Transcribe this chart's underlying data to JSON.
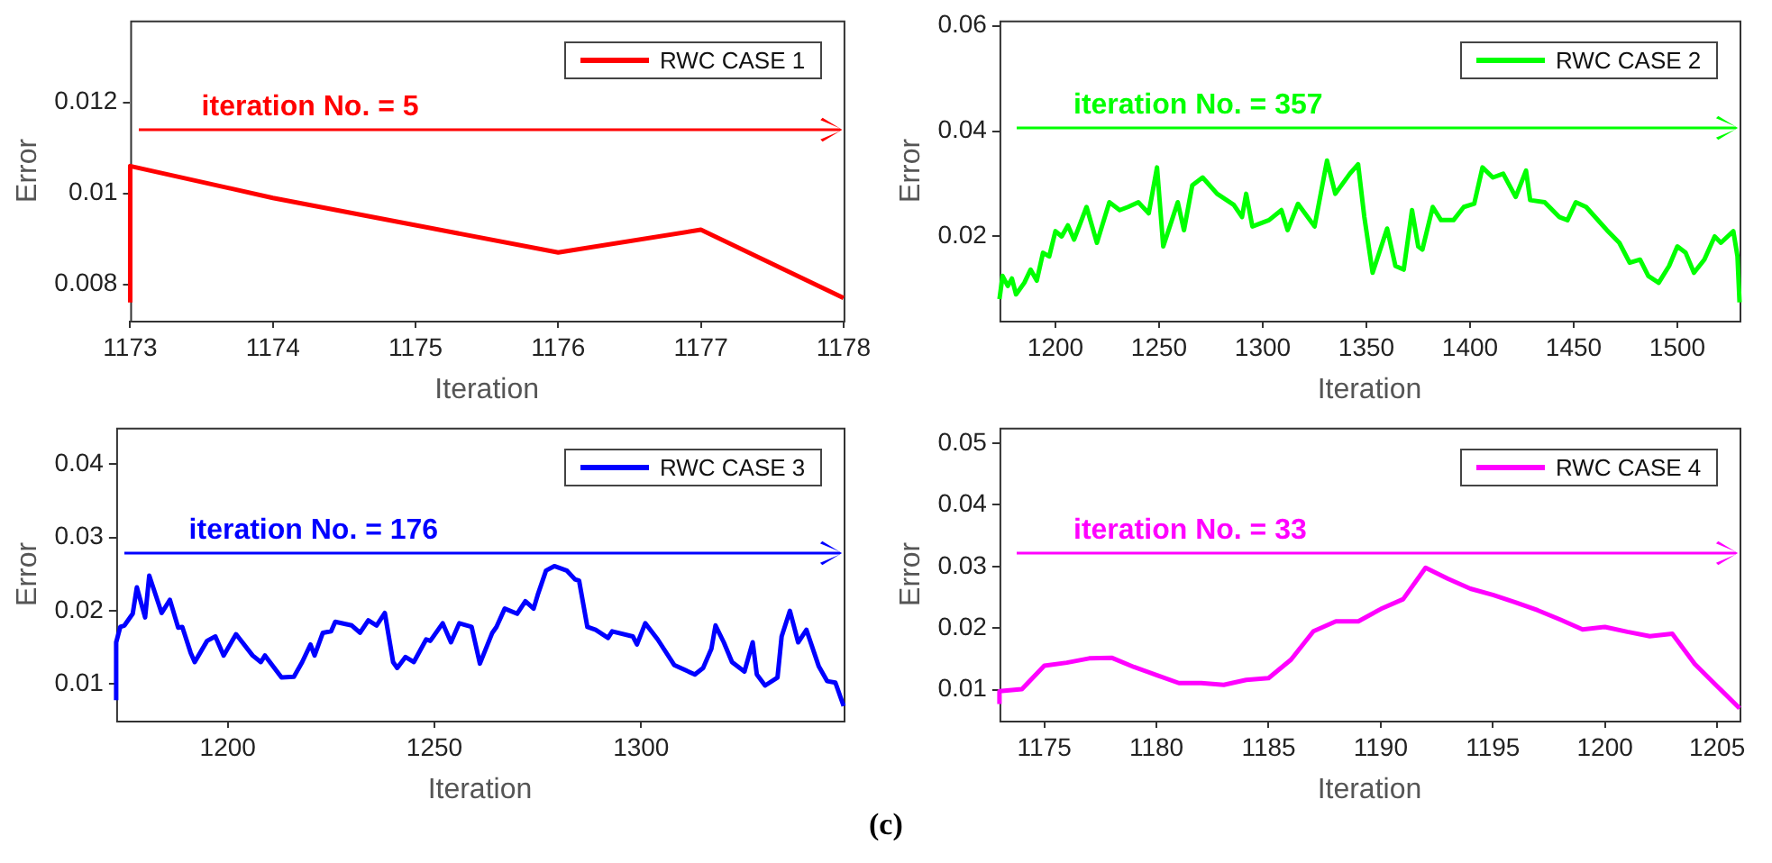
{
  "chart_data": [
    {
      "type": "line",
      "xlabel": "Iteration",
      "ylabel": "Error",
      "xlim": [
        1173,
        1178
      ],
      "xticks": [
        1173,
        1174,
        1175,
        1176,
        1177,
        1178
      ],
      "ylim": [
        0.0072,
        0.0138
      ],
      "yticks": [
        0.008,
        0.01,
        0.012
      ],
      "legend": "top right",
      "annotations": [
        "iteration No. = 5"
      ],
      "series": [
        {
          "name": "RWC CASE 1",
          "color": "#ff0000",
          "x": [
            1173,
            1173,
            1174,
            1175,
            1176,
            1177,
            1178
          ],
          "values": [
            0.0076,
            0.0106,
            0.0099,
            0.0093,
            0.0087,
            0.0092,
            0.0077
          ]
        }
      ]
    },
    {
      "type": "line",
      "xlabel": "Iteration",
      "ylabel": "Error",
      "xlim": [
        1173,
        1530
      ],
      "xticks": [
        1200,
        1250,
        1300,
        1350,
        1400,
        1450,
        1500
      ],
      "ylim": [
        0.004,
        0.061
      ],
      "yticks": [
        0.02,
        0.04,
        0.06
      ],
      "legend": "top right",
      "annotations": [
        "iteration No. = 357"
      ],
      "series": [
        {
          "name": "RWC CASE 2",
          "color": "#00ff00",
          "x": [
            1173,
            1174.5,
            1177,
            1179,
            1181,
            1185,
            1188,
            1191,
            1194,
            1197,
            1200,
            1203,
            1206,
            1209,
            1215,
            1220,
            1226,
            1231,
            1235,
            1240,
            1245,
            1249,
            1252,
            1259,
            1262,
            1266,
            1271,
            1278,
            1286,
            1290,
            1292,
            1295,
            1303,
            1309,
            1312,
            1317,
            1325,
            1331,
            1335,
            1342,
            1346,
            1349,
            1353,
            1360,
            1364,
            1368,
            1372,
            1375,
            1377,
            1382,
            1386,
            1392,
            1397,
            1402,
            1406,
            1411,
            1416,
            1422,
            1427,
            1429,
            1436,
            1443,
            1447,
            1451,
            1456,
            1466,
            1472,
            1477,
            1482,
            1486,
            1491,
            1496,
            1500,
            1504,
            1508,
            1513,
            1518,
            1521,
            1527,
            1529,
            1530
          ],
          "values": [
            0.0081,
            0.0125,
            0.0106,
            0.012,
            0.009,
            0.0112,
            0.0137,
            0.0116,
            0.0169,
            0.0162,
            0.021,
            0.02,
            0.0221,
            0.0194,
            0.0256,
            0.0188,
            0.0265,
            0.025,
            0.0256,
            0.0265,
            0.0244,
            0.0331,
            0.0181,
            0.0265,
            0.0212,
            0.0297,
            0.0312,
            0.0281,
            0.026,
            0.0237,
            0.0281,
            0.0219,
            0.0231,
            0.025,
            0.0212,
            0.0262,
            0.0219,
            0.0344,
            0.0281,
            0.0319,
            0.0337,
            0.0237,
            0.0131,
            0.0215,
            0.0144,
            0.0137,
            0.025,
            0.0181,
            0.0175,
            0.0256,
            0.0231,
            0.0231,
            0.0256,
            0.0262,
            0.0331,
            0.0312,
            0.0319,
            0.0275,
            0.0325,
            0.0269,
            0.0265,
            0.0237,
            0.0231,
            0.0265,
            0.0256,
            0.0212,
            0.0188,
            0.015,
            0.0156,
            0.0125,
            0.0112,
            0.0144,
            0.0181,
            0.0169,
            0.0131,
            0.0156,
            0.02,
            0.0188,
            0.021,
            0.0162,
            0.0075
          ]
        }
      ]
    },
    {
      "type": "line",
      "xlabel": "Iteration",
      "ylabel": "Error",
      "xlim": [
        1173,
        1349
      ],
      "xticks": [
        1200,
        1250,
        1300
      ],
      "ylim": [
        0.005,
        0.045
      ],
      "yticks": [
        0.01,
        0.02,
        0.03,
        0.04
      ],
      "legend": "top right",
      "annotations": [
        "iteration No. = 176"
      ],
      "series": [
        {
          "name": "RWC CASE 3",
          "color": "#0000ff",
          "x": [
            1173,
            1173,
            1174,
            1175,
            1177,
            1178,
            1180,
            1181,
            1184,
            1186,
            1188,
            1189,
            1191,
            1192,
            1195,
            1197,
            1199,
            1202,
            1206,
            1208,
            1209,
            1213,
            1216,
            1218,
            1220,
            1221,
            1223,
            1225,
            1226,
            1230,
            1232,
            1234,
            1236,
            1238,
            1240,
            1241,
            1243,
            1245,
            1248,
            1249,
            1252,
            1254,
            1256,
            1259,
            1261,
            1264,
            1265,
            1267,
            1270,
            1272,
            1274,
            1275,
            1277,
            1279,
            1282,
            1284,
            1285,
            1287,
            1289,
            1292,
            1293,
            1298,
            1299,
            1301,
            1304,
            1308,
            1313,
            1315,
            1317,
            1318,
            1320,
            1322,
            1325,
            1327,
            1328,
            1330,
            1333,
            1334,
            1336,
            1338,
            1340,
            1343,
            1345,
            1347,
            1349
          ],
          "values": [
            0.0078,
            0.0157,
            0.0178,
            0.018,
            0.0196,
            0.0232,
            0.0191,
            0.0248,
            0.0197,
            0.0215,
            0.0177,
            0.0178,
            0.0143,
            0.013,
            0.0159,
            0.0165,
            0.0139,
            0.0168,
            0.0139,
            0.013,
            0.0139,
            0.0109,
            0.011,
            0.013,
            0.0154,
            0.0139,
            0.017,
            0.0172,
            0.0185,
            0.018,
            0.017,
            0.0187,
            0.018,
            0.0197,
            0.013,
            0.0122,
            0.0137,
            0.013,
            0.0161,
            0.0159,
            0.0183,
            0.0157,
            0.0183,
            0.0178,
            0.0128,
            0.017,
            0.0178,
            0.0203,
            0.0196,
            0.0213,
            0.0203,
            0.0222,
            0.0255,
            0.0261,
            0.0255,
            0.0243,
            0.0241,
            0.0178,
            0.0174,
            0.0163,
            0.0172,
            0.0165,
            0.0154,
            0.0183,
            0.0161,
            0.0126,
            0.0113,
            0.0122,
            0.0148,
            0.018,
            0.0157,
            0.013,
            0.0117,
            0.0157,
            0.0113,
            0.0098,
            0.0109,
            0.0165,
            0.02,
            0.0157,
            0.0174,
            0.0124,
            0.0104,
            0.0102,
            0.007
          ]
        }
      ]
    },
    {
      "type": "line",
      "xlabel": "Iteration",
      "ylabel": "Error",
      "xlim": [
        1173,
        1206
      ],
      "xticks": [
        1175,
        1180,
        1185,
        1190,
        1195,
        1200,
        1205
      ],
      "ylim": [
        0.005,
        0.0525
      ],
      "yticks": [
        0.01,
        0.02,
        0.03,
        0.04,
        0.05
      ],
      "legend": "top right",
      "annotations": [
        "iteration No. = 33"
      ],
      "series": [
        {
          "name": "RWC CASE 4",
          "color": "#ff00ff",
          "x": [
            1173,
            1173,
            1174,
            1175,
            1176,
            1177,
            1178,
            1179,
            1180,
            1181,
            1182,
            1183,
            1184,
            1185,
            1186,
            1187,
            1188,
            1189,
            1190,
            1191,
            1192,
            1193,
            1194,
            1195,
            1196,
            1197,
            1198,
            1199,
            1200,
            1201,
            1202,
            1203,
            1204,
            1205,
            1206
          ],
          "values": [
            0.0077,
            0.0098,
            0.0101,
            0.0139,
            0.0144,
            0.0151,
            0.0152,
            0.0137,
            0.0124,
            0.0111,
            0.0111,
            0.0108,
            0.0116,
            0.0119,
            0.0149,
            0.0195,
            0.0211,
            0.0211,
            0.0231,
            0.0247,
            0.0298,
            0.028,
            0.0264,
            0.0254,
            0.0242,
            0.0229,
            0.0214,
            0.0198,
            0.0202,
            0.0194,
            0.0187,
            0.0191,
            0.0142,
            0.0106,
            0.007
          ]
        }
      ]
    },
    {
      "type": "other",
      "title": "(c)"
    }
  ]
}
